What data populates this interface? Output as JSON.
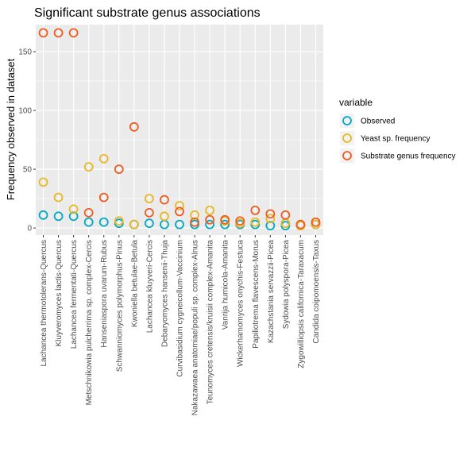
{
  "chart_data": {
    "type": "scatter",
    "title": "Significant substrate genus associations",
    "xlabel": "",
    "ylabel": "Frequency observed in dataset",
    "ylim": [
      -6,
      173
    ],
    "yticks": [
      0,
      50,
      100,
      150
    ],
    "grid": true,
    "legend_title": "variable",
    "legend_placement": "right",
    "categories": [
      "Lachancea thermotolerans-Quercus",
      "Kluyveromyces lactis-Quercus",
      "Lachancea fermentati-Quercus",
      "Metschnikowia pulcherrima sp. complex-Cercis",
      "Hanseniaspora uvarum-Rubus",
      "Schwanniomyces polymorphus-Pinus",
      "Kwoniella betulae-Betula",
      "Lachancea kluyveri-Cercis",
      "Debaryomyces hansenii-Thuja",
      "Curvibasidium cygneicollum-Vaccinium",
      "Nakazawaea anatomiae/populi sp. complex-Alnus",
      "Teunomyces cretensis/kruisii complex-Amanita",
      "Vanrija humicola-Amanita",
      "Wickerhamomyces onychis-Festuca",
      "Papiliotrema flavescens-Morus",
      "Kazachstania servazzii-Picea",
      "Sydowia polyspora-Picea",
      "Zygowilliopsis californica-Taraxacum",
      "Candida coipomoensis-Taxus"
    ],
    "series": [
      {
        "name": "Observed",
        "color": "#00A9C5",
        "values": [
          11,
          10,
          10,
          5,
          5,
          4,
          3,
          4,
          3,
          3,
          3,
          3,
          3,
          3,
          3,
          2,
          2,
          2,
          3
        ]
      },
      {
        "name": "Yeast sp. frequency",
        "color": "#E9B820",
        "values": [
          39,
          26,
          16,
          52,
          59,
          6,
          3,
          25,
          10,
          19,
          11,
          15,
          6,
          4,
          5,
          8,
          4,
          2,
          3
        ]
      },
      {
        "name": "Substrate genus frequency",
        "color": "#F05A1F",
        "values": [
          166,
          166,
          166,
          13,
          26,
          50,
          86,
          13,
          24,
          14,
          5,
          7,
          7,
          6,
          15,
          12,
          11,
          3,
          5
        ]
      }
    ]
  }
}
